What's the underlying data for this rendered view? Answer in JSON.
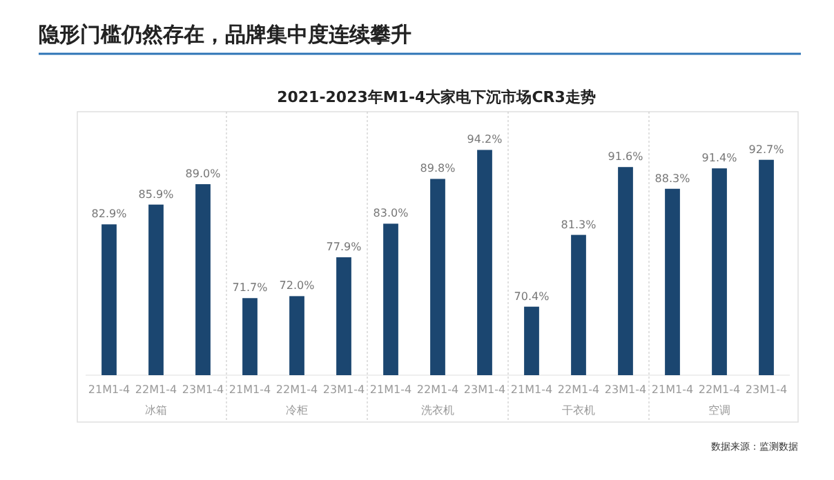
{
  "chart_data": {
    "type": "bar",
    "title": "隐形门槛仍然存在，品牌集中度连续攀升",
    "subtitle": "2021-2023年M1-4大家电下沉市场CR3走势",
    "categories": [
      "21M1-4",
      "22M1-4",
      "23M1-4",
      "21M1-4",
      "22M1-4",
      "23M1-4",
      "21M1-4",
      "22M1-4",
      "23M1-4",
      "21M1-4",
      "22M1-4",
      "23M1-4",
      "21M1-4",
      "22M1-4",
      "23M1-4"
    ],
    "values": [
      82.9,
      85.9,
      89.0,
      71.7,
      72.0,
      77.9,
      83.0,
      89.8,
      94.2,
      70.4,
      81.3,
      91.6,
      88.3,
      91.4,
      92.7
    ],
    "value_labels": [
      "82.9%",
      "85.9%",
      "89.0%",
      "71.7%",
      "72.0%",
      "77.9%",
      "83.0%",
      "89.8%",
      "94.2%",
      "70.4%",
      "81.3%",
      "91.6%",
      "88.3%",
      "91.4%",
      "92.7%"
    ],
    "color": "#1b4670",
    "ylim": [
      60,
      100
    ],
    "annotations": [
      "冰箱",
      "冷柜",
      "洗衣机",
      "干衣机",
      "空调",
      "数据来源：监测数据"
    ]
  }
}
